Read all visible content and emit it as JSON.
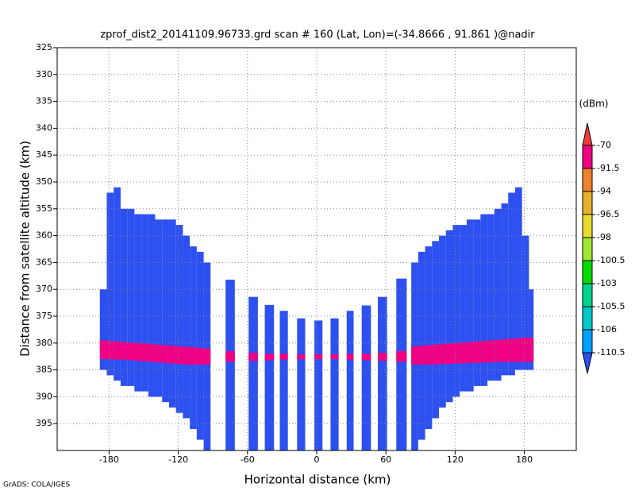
{
  "chart_data": {
    "type": "profile",
    "title": "zprof_dist2_20141109.96733.grd  scan # 160  (Lat, Lon)=(-34.8666 , 91.861 )@nadir",
    "x_label": "Horizontal distance (km)",
    "y_label": "Distance from satellite altitude (km)",
    "footer": "GrADS: COLA/IGES",
    "xlim": [
      -225,
      225
    ],
    "ylim": [
      325,
      400
    ],
    "y_inverted": true,
    "xticks": [
      -180,
      -120,
      -60,
      0,
      60,
      120,
      180
    ],
    "yticks": [
      325,
      330,
      335,
      340,
      345,
      350,
      355,
      360,
      365,
      370,
      375,
      380,
      385,
      390,
      395
    ],
    "grid": true,
    "colorbar": {
      "unit": "(dBm)",
      "levels": [
        -70,
        -91.5,
        -94,
        -96.5,
        -98,
        -100.5,
        -103,
        -105.5,
        -106,
        -110.5
      ],
      "colors": [
        "#f03c3c",
        "#f00082",
        "#f0822d",
        "#e6af2d",
        "#e6dc32",
        "#a0e632",
        "#00dc00",
        "#00d28c",
        "#00c8c8",
        "#00a0ff",
        "#2d50f0"
      ]
    },
    "body_color": "#2d50f0",
    "echo_color": "#f00082",
    "columns": [
      {
        "x0": -188,
        "x1": -182,
        "top": 370,
        "bottom": 385,
        "echo_top": 379.5,
        "echo_bottom": 383
      },
      {
        "x0": -182,
        "x1": -176,
        "top": 352,
        "bottom": 386,
        "echo_top": 379.6,
        "echo_bottom": 383
      },
      {
        "x0": -176,
        "x1": -170,
        "top": 351,
        "bottom": 387,
        "echo_top": 379.7,
        "echo_bottom": 383.1
      },
      {
        "x0": -170,
        "x1": -164,
        "top": 355,
        "bottom": 388,
        "echo_top": 379.8,
        "echo_bottom": 383.1
      },
      {
        "x0": -164,
        "x1": -158,
        "top": 355,
        "bottom": 388,
        "echo_top": 379.9,
        "echo_bottom": 383.2
      },
      {
        "x0": -158,
        "x1": -152,
        "top": 356,
        "bottom": 389,
        "echo_top": 380,
        "echo_bottom": 383.3
      },
      {
        "x0": -152,
        "x1": -146,
        "top": 356,
        "bottom": 389,
        "echo_top": 380.1,
        "echo_bottom": 383.4
      },
      {
        "x0": -146,
        "x1": -140,
        "top": 356,
        "bottom": 390,
        "echo_top": 380.2,
        "echo_bottom": 383.5
      },
      {
        "x0": -140,
        "x1": -134,
        "top": 357,
        "bottom": 390,
        "echo_top": 380.3,
        "echo_bottom": 383.6
      },
      {
        "x0": -134,
        "x1": -128,
        "top": 357,
        "bottom": 391,
        "echo_top": 380.4,
        "echo_bottom": 383.7
      },
      {
        "x0": -128,
        "x1": -122,
        "top": 357,
        "bottom": 392,
        "echo_top": 380.5,
        "echo_bottom": 383.8
      },
      {
        "x0": -122,
        "x1": -116,
        "top": 358,
        "bottom": 393,
        "echo_top": 380.6,
        "echo_bottom": 383.9
      },
      {
        "x0": -116,
        "x1": -110,
        "top": 360,
        "bottom": 394,
        "echo_top": 380.7,
        "echo_bottom": 384
      },
      {
        "x0": -110,
        "x1": -104,
        "top": 362,
        "bottom": 396,
        "echo_top": 380.8,
        "echo_bottom": 384
      },
      {
        "x0": -104,
        "x1": -98,
        "top": 363,
        "bottom": 398,
        "echo_top": 380.9,
        "echo_bottom": 384
      },
      {
        "x0": -98,
        "x1": -92,
        "top": 365,
        "bottom": 400,
        "echo_top": 381,
        "echo_bottom": 384
      },
      {
        "x0": -79,
        "x1": -71,
        "top": 368.2,
        "bottom": 400,
        "echo_top": 381.5,
        "echo_bottom": 383.5
      },
      {
        "x0": -59,
        "x1": -51,
        "top": 371.4,
        "bottom": 400,
        "echo_top": 381.8,
        "echo_bottom": 383.3
      },
      {
        "x0": -45,
        "x1": -37,
        "top": 372.9,
        "bottom": 400,
        "echo_top": 382,
        "echo_bottom": 383.2
      },
      {
        "x0": -32,
        "x1": -25,
        "top": 374,
        "bottom": 400,
        "echo_top": 382,
        "echo_bottom": 383.1
      },
      {
        "x0": -17,
        "x1": -10,
        "top": 375.4,
        "bottom": 400,
        "echo_top": 382.1,
        "echo_bottom": 383
      },
      {
        "x0": -2,
        "x1": 5,
        "top": 375.8,
        "bottom": 400,
        "echo_top": 382.1,
        "echo_bottom": 383
      },
      {
        "x0": 12,
        "x1": 19,
        "top": 375.4,
        "bottom": 400,
        "echo_top": 382.1,
        "echo_bottom": 383
      },
      {
        "x0": 26,
        "x1": 32,
        "top": 374,
        "bottom": 400,
        "echo_top": 382,
        "echo_bottom": 383.1
      },
      {
        "x0": 39,
        "x1": 47,
        "top": 373,
        "bottom": 400,
        "echo_top": 382,
        "echo_bottom": 383.2
      },
      {
        "x0": 53,
        "x1": 61,
        "top": 371.4,
        "bottom": 400,
        "echo_top": 381.8,
        "echo_bottom": 383.3
      },
      {
        "x0": 69,
        "x1": 78,
        "top": 368,
        "bottom": 400,
        "echo_top": 381.5,
        "echo_bottom": 383.5
      },
      {
        "x0": 82,
        "x1": 88,
        "top": 365,
        "bottom": 400,
        "echo_top": 380.6,
        "echo_bottom": 384
      },
      {
        "x0": 88,
        "x1": 94,
        "top": 363,
        "bottom": 398,
        "echo_top": 380.5,
        "echo_bottom": 384
      },
      {
        "x0": 94,
        "x1": 100,
        "top": 362,
        "bottom": 396,
        "echo_top": 380.4,
        "echo_bottom": 384
      },
      {
        "x0": 100,
        "x1": 106,
        "top": 361,
        "bottom": 394,
        "echo_top": 380.3,
        "echo_bottom": 384
      },
      {
        "x0": 106,
        "x1": 112,
        "top": 360,
        "bottom": 392,
        "echo_top": 380.2,
        "echo_bottom": 383.9
      },
      {
        "x0": 112,
        "x1": 118,
        "top": 359,
        "bottom": 391,
        "echo_top": 380.1,
        "echo_bottom": 383.9
      },
      {
        "x0": 118,
        "x1": 124,
        "top": 358,
        "bottom": 390,
        "echo_top": 380,
        "echo_bottom": 383.8
      },
      {
        "x0": 124,
        "x1": 130,
        "top": 358,
        "bottom": 389,
        "echo_top": 379.9,
        "echo_bottom": 383.8
      },
      {
        "x0": 130,
        "x1": 136,
        "top": 357,
        "bottom": 389,
        "echo_top": 379.8,
        "echo_bottom": 383.7
      },
      {
        "x0": 136,
        "x1": 142,
        "top": 357,
        "bottom": 388,
        "echo_top": 379.7,
        "echo_bottom": 383.7
      },
      {
        "x0": 142,
        "x1": 148,
        "top": 356,
        "bottom": 388,
        "echo_top": 379.6,
        "echo_bottom": 383.6
      },
      {
        "x0": 148,
        "x1": 154,
        "top": 356,
        "bottom": 387,
        "echo_top": 379.5,
        "echo_bottom": 383.6
      },
      {
        "x0": 154,
        "x1": 160,
        "top": 355,
        "bottom": 387,
        "echo_top": 379.4,
        "echo_bottom": 383.5
      },
      {
        "x0": 160,
        "x1": 166,
        "top": 354,
        "bottom": 386,
        "echo_top": 379.3,
        "echo_bottom": 383.5
      },
      {
        "x0": 166,
        "x1": 172,
        "top": 352,
        "bottom": 386,
        "echo_top": 379.2,
        "echo_bottom": 383.5
      },
      {
        "x0": 172,
        "x1": 178,
        "top": 351,
        "bottom": 385,
        "echo_top": 379.1,
        "echo_bottom": 383.5
      },
      {
        "x0": 178,
        "x1": 184,
        "top": 360,
        "bottom": 385,
        "echo_top": 379,
        "echo_bottom": 383.5
      },
      {
        "x0": 184,
        "x1": 188,
        "top": 370,
        "bottom": 385,
        "echo_top": 379,
        "echo_bottom": 383.5
      }
    ]
  }
}
